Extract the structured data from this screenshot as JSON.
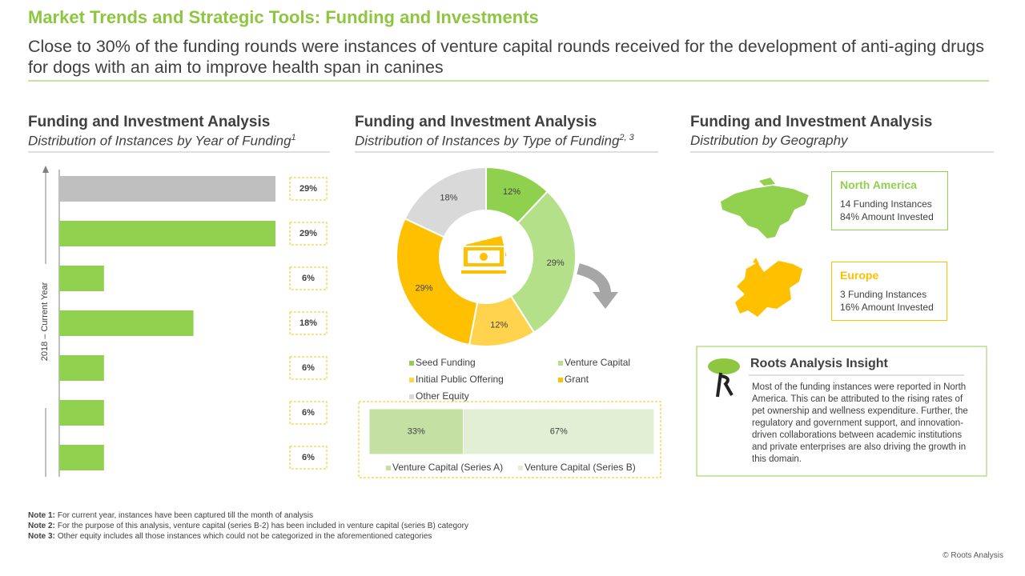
{
  "header": {
    "title": "Market Trends and Strategic Tools: Funding and Investments",
    "subtitle": "Close to 30% of the funding rounds were instances of venture capital rounds received for the development of anti-aging drugs for dogs with an aim to improve health span in canines"
  },
  "chart_data": [
    {
      "type": "bar",
      "title": "Funding and Investment Analysis",
      "subtitle": "Distribution of Instances by Year of Funding",
      "subtitle_note": "1",
      "y_label": "2018 – Current Year",
      "values": [
        29,
        29,
        6,
        18,
        6,
        6,
        6
      ],
      "value_labels": [
        "29%",
        "29%",
        "6%",
        "18%",
        "6%",
        "6%",
        "6%"
      ],
      "colors": [
        "#bfbfbf",
        "#92d050",
        "#92d050",
        "#92d050",
        "#92d050",
        "#92d050",
        "#92d050"
      ]
    },
    {
      "type": "donut",
      "title": "Funding and Investment Analysis",
      "subtitle": "Distribution of Instances by Type of Funding",
      "subtitle_note": "2, 3",
      "categories": [
        "Seed Funding",
        "Venture Capital",
        "Initial Public Offering",
        "Grant",
        "Other Equity"
      ],
      "values": [
        12,
        29,
        12,
        29,
        18
      ],
      "value_labels": [
        "12%",
        "29%",
        "12%",
        "29%",
        "18%"
      ],
      "colors": [
        "#8fd14f",
        "#b5e08a",
        "#ffd34d",
        "#ffc000",
        "#d9d9d9"
      ]
    },
    {
      "type": "stacked_bar",
      "series": [
        {
          "name": "Venture Capital (Series A)",
          "color": "#c5e0a3",
          "values": [
            33
          ],
          "value_labels": [
            "33%"
          ]
        },
        {
          "name": "Venture Capital (Series B)",
          "color": "#e2efd5",
          "values": [
            67
          ],
          "value_labels": [
            "67%"
          ]
        }
      ]
    }
  ],
  "geography": {
    "title": "Funding and Investment Analysis",
    "subtitle": "Distribution by Geography",
    "regions": [
      {
        "name": "North America",
        "instances": "14 Funding Instances",
        "amount": "84% Amount Invested",
        "color": "#92d050"
      },
      {
        "name": "Europe",
        "instances": "3 Funding Instances",
        "amount": "16% Amount Invested",
        "color": "#ffc000"
      }
    ]
  },
  "insight": {
    "title": "Roots Analysis Insight",
    "text": "Most of the funding instances were reported in North America. This can be attributed to the rising rates of pet ownership and wellness expenditure. Further, the regulatory and government support, and innovation-driven collaborations between academic institutions and private enterprises are also driving the growth in this domain."
  },
  "notes": [
    {
      "label": "Note 1:",
      "text": "For current year, instances have been captured till the month of analysis"
    },
    {
      "label": "Note 2:",
      "text": "For the purpose of this analysis, venture capital (series B-2) has been included in venture capital (series B) category"
    },
    {
      "label": "Note 3:",
      "text": "Other equity includes all those instances which could not be categorized in the aforementioned categories"
    }
  ],
  "footer": "© Roots Analysis"
}
